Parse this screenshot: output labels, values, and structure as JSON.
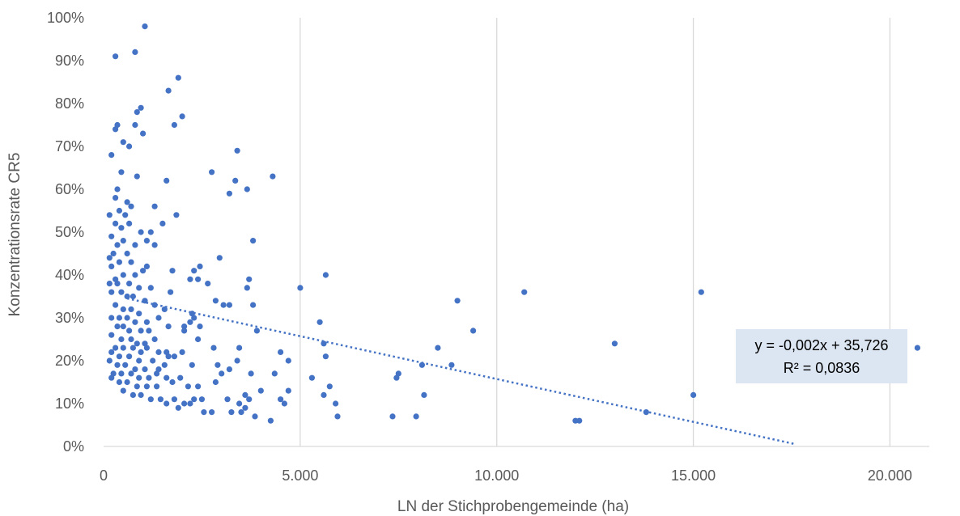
{
  "chart_data": {
    "type": "scatter",
    "xlabel": "LN der Stichprobengemeinde (ha)",
    "ylabel": "Konzentrationsrate CR5",
    "xlim": [
      0,
      21000
    ],
    "ylim": [
      0,
      100
    ],
    "x_ticks": [
      0,
      5000,
      10000,
      15000,
      20000
    ],
    "x_tick_labels": [
      "0",
      "5.000",
      "10.000",
      "15.000",
      "20.000"
    ],
    "y_ticks": [
      0,
      10,
      20,
      30,
      40,
      50,
      60,
      70,
      80,
      90,
      100
    ],
    "y_tick_labels": [
      "0%",
      "10%",
      "20%",
      "30%",
      "40%",
      "50%",
      "60%",
      "70%",
      "80%",
      "90%",
      "100%"
    ],
    "grid": "vertical",
    "point_color": "#4472C4",
    "trendline": {
      "type": "linear",
      "slope": -0.002,
      "intercept": 35.726,
      "x_range": [
        600,
        17600
      ],
      "equation": "y = -0,002x + 35,726",
      "r_squared": "R² = 0,0836"
    },
    "points": [
      [
        1050,
        98
      ],
      [
        300,
        91
      ],
      [
        800,
        92
      ],
      [
        1900,
        86
      ],
      [
        1650,
        83
      ],
      [
        2000,
        77
      ],
      [
        1800,
        75
      ],
      [
        950,
        79
      ],
      [
        850,
        78
      ],
      [
        350,
        75
      ],
      [
        300,
        74
      ],
      [
        500,
        71
      ],
      [
        650,
        70
      ],
      [
        1000,
        73
      ],
      [
        800,
        75
      ],
      [
        200,
        68
      ],
      [
        3400,
        69
      ],
      [
        850,
        63
      ],
      [
        450,
        64
      ],
      [
        2750,
        64
      ],
      [
        3350,
        62
      ],
      [
        4300,
        63
      ],
      [
        3200,
        59
      ],
      [
        3650,
        60
      ],
      [
        1600,
        62
      ],
      [
        350,
        60
      ],
      [
        300,
        58
      ],
      [
        600,
        57
      ],
      [
        700,
        56
      ],
      [
        1300,
        56
      ],
      [
        400,
        55
      ],
      [
        550,
        54
      ],
      [
        150,
        54
      ],
      [
        1850,
        54
      ],
      [
        1500,
        52
      ],
      [
        300,
        52
      ],
      [
        450,
        51
      ],
      [
        650,
        52
      ],
      [
        950,
        50
      ],
      [
        1200,
        50
      ],
      [
        1300,
        47
      ],
      [
        1100,
        48
      ],
      [
        800,
        47
      ],
      [
        500,
        48
      ],
      [
        200,
        49
      ],
      [
        350,
        47
      ],
      [
        3800,
        48
      ],
      [
        250,
        45
      ],
      [
        600,
        45
      ],
      [
        150,
        44
      ],
      [
        400,
        43
      ],
      [
        700,
        43
      ],
      [
        200,
        42
      ],
      [
        1000,
        41
      ],
      [
        1100,
        42
      ],
      [
        1750,
        41
      ],
      [
        2300,
        41
      ],
      [
        2450,
        42
      ],
      [
        2950,
        44
      ],
      [
        5650,
        40
      ],
      [
        3700,
        39
      ],
      [
        2200,
        39
      ],
      [
        2400,
        39
      ],
      [
        300,
        39
      ],
      [
        500,
        40
      ],
      [
        800,
        40
      ],
      [
        150,
        38
      ],
      [
        350,
        38
      ],
      [
        650,
        38
      ],
      [
        900,
        37
      ],
      [
        1200,
        37
      ],
      [
        2650,
        38
      ],
      [
        1700,
        36
      ],
      [
        5000,
        37
      ],
      [
        3650,
        37
      ],
      [
        200,
        36
      ],
      [
        450,
        36
      ],
      [
        600,
        35
      ],
      [
        750,
        35
      ],
      [
        1050,
        34
      ],
      [
        2850,
        34
      ],
      [
        3200,
        33
      ],
      [
        3050,
        33
      ],
      [
        3800,
        33
      ],
      [
        9000,
        34
      ],
      [
        10700,
        36
      ],
      [
        15200,
        36
      ],
      [
        300,
        33
      ],
      [
        500,
        32
      ],
      [
        700,
        32
      ],
      [
        900,
        31
      ],
      [
        1300,
        33
      ],
      [
        1550,
        32
      ],
      [
        2250,
        31
      ],
      [
        2300,
        30
      ],
      [
        200,
        30
      ],
      [
        400,
        30
      ],
      [
        600,
        30
      ],
      [
        800,
        29
      ],
      [
        1100,
        29
      ],
      [
        1400,
        30
      ],
      [
        2050,
        28
      ],
      [
        2200,
        29
      ],
      [
        5500,
        29
      ],
      [
        2450,
        28
      ],
      [
        350,
        28
      ],
      [
        500,
        28
      ],
      [
        650,
        27
      ],
      [
        950,
        27
      ],
      [
        1150,
        27
      ],
      [
        1650,
        28
      ],
      [
        2050,
        27
      ],
      [
        3900,
        27
      ],
      [
        9400,
        27
      ],
      [
        200,
        26
      ],
      [
        450,
        25
      ],
      [
        700,
        25
      ],
      [
        850,
        24
      ],
      [
        1050,
        24
      ],
      [
        1300,
        25
      ],
      [
        2400,
        25
      ],
      [
        300,
        23
      ],
      [
        500,
        23
      ],
      [
        750,
        23
      ],
      [
        950,
        22
      ],
      [
        1100,
        23
      ],
      [
        1400,
        22
      ],
      [
        1600,
        22
      ],
      [
        2800,
        23
      ],
      [
        3450,
        23
      ],
      [
        5600,
        24
      ],
      [
        8500,
        23
      ],
      [
        13000,
        24
      ],
      [
        20700,
        23
      ],
      [
        200,
        22
      ],
      [
        400,
        21
      ],
      [
        650,
        21
      ],
      [
        900,
        20
      ],
      [
        1250,
        20
      ],
      [
        1650,
        21
      ],
      [
        1800,
        21
      ],
      [
        2000,
        22
      ],
      [
        4500,
        22
      ],
      [
        5650,
        21
      ],
      [
        150,
        20
      ],
      [
        350,
        19
      ],
      [
        550,
        19
      ],
      [
        800,
        18
      ],
      [
        1050,
        18
      ],
      [
        1400,
        18
      ],
      [
        1550,
        19
      ],
      [
        2250,
        19
      ],
      [
        2900,
        19
      ],
      [
        3400,
        20
      ],
      [
        3200,
        18
      ],
      [
        4700,
        20
      ],
      [
        8100,
        19
      ],
      [
        8850,
        19
      ],
      [
        250,
        17
      ],
      [
        450,
        17
      ],
      [
        700,
        17
      ],
      [
        900,
        16
      ],
      [
        1150,
        16
      ],
      [
        1350,
        17
      ],
      [
        1600,
        16
      ],
      [
        1950,
        16
      ],
      [
        2850,
        15
      ],
      [
        3000,
        17
      ],
      [
        3750,
        17
      ],
      [
        4350,
        17
      ],
      [
        5300,
        16
      ],
      [
        7500,
        17
      ],
      [
        7450,
        16
      ],
      [
        200,
        16
      ],
      [
        400,
        15
      ],
      [
        600,
        15
      ],
      [
        850,
        14
      ],
      [
        1100,
        14
      ],
      [
        1350,
        14
      ],
      [
        1750,
        15
      ],
      [
        2150,
        14
      ],
      [
        2400,
        14
      ],
      [
        5750,
        14
      ],
      [
        3600,
        12
      ],
      [
        4000,
        13
      ],
      [
        4700,
        13
      ],
      [
        500,
        13
      ],
      [
        750,
        12
      ],
      [
        950,
        12
      ],
      [
        1200,
        11
      ],
      [
        1450,
        11
      ],
      [
        1800,
        11
      ],
      [
        2050,
        10
      ],
      [
        2300,
        11
      ],
      [
        2500,
        11
      ],
      [
        3150,
        11
      ],
      [
        3450,
        10
      ],
      [
        3700,
        11
      ],
      [
        4500,
        11
      ],
      [
        4600,
        10
      ],
      [
        5600,
        12
      ],
      [
        5900,
        10
      ],
      [
        8150,
        12
      ],
      [
        15000,
        12
      ],
      [
        1600,
        10
      ],
      [
        1900,
        9
      ],
      [
        2200,
        10
      ],
      [
        2550,
        8
      ],
      [
        2750,
        8
      ],
      [
        3250,
        8
      ],
      [
        3500,
        8
      ],
      [
        3600,
        9
      ],
      [
        3850,
        7
      ],
      [
        4250,
        6
      ],
      [
        5950,
        7
      ],
      [
        7350,
        7
      ],
      [
        7950,
        7
      ],
      [
        12000,
        6
      ],
      [
        12100,
        6
      ],
      [
        13800,
        8
      ]
    ]
  }
}
